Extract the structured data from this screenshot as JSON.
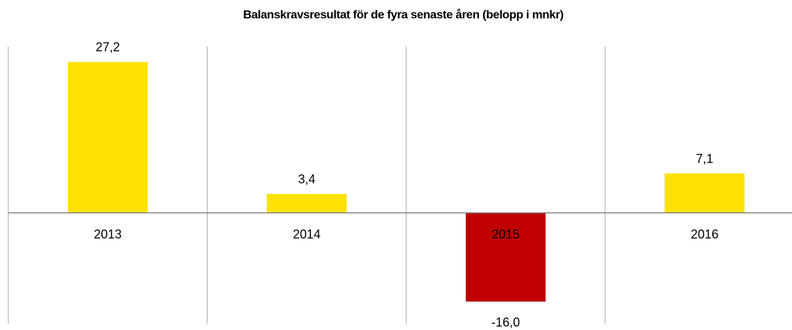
{
  "chart_data": {
    "type": "bar",
    "title": "Balanskravsresultat för de fyra senaste åren (belopp i mnkr)",
    "categories": [
      "2013",
      "2014",
      "2015",
      "2016"
    ],
    "values": [
      27.2,
      3.4,
      -16.0,
      7.1
    ],
    "value_labels": [
      "27,2",
      "3,4",
      "-16,0",
      "7,1"
    ],
    "colors": [
      "#ffe100",
      "#ffe100",
      "#c00000",
      "#ffe100"
    ],
    "ylim": [
      -20,
      30
    ]
  }
}
